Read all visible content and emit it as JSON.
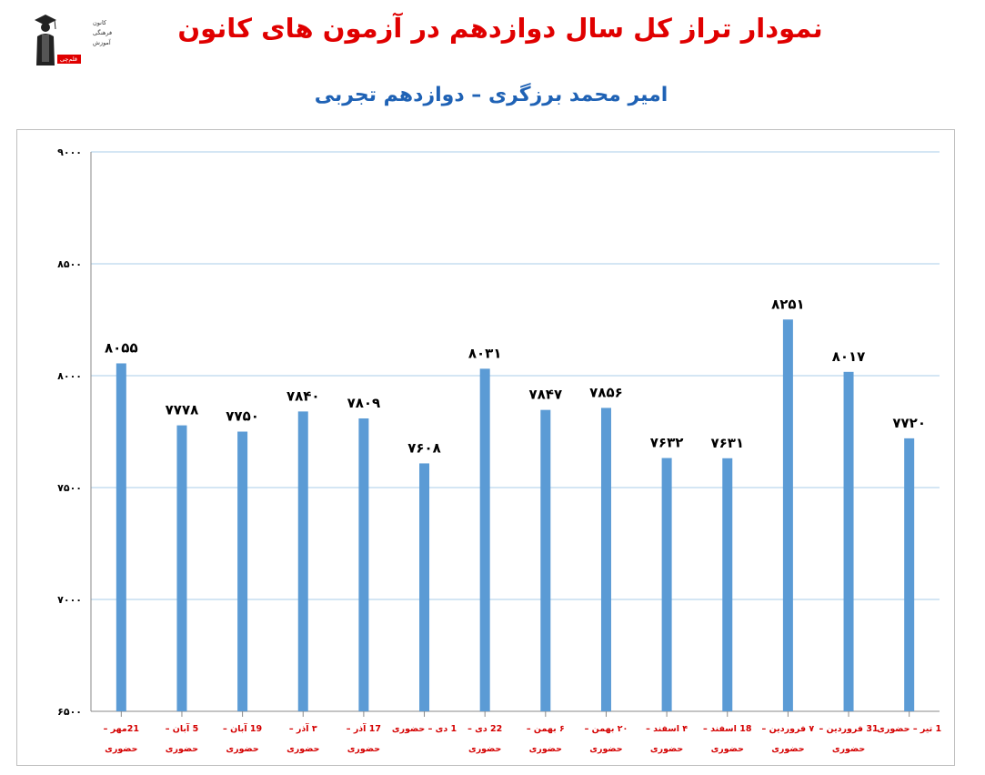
{
  "header": {
    "title": "نمودار تراز کل سال دوازدهم در آزمون های کانون",
    "subtitle": "امیر محمد برزگری – دوازدهم تجربی",
    "logo_lines": [
      "کانون",
      "فرهنگی",
      "آموزش",
      "قلم‌چی"
    ]
  },
  "colors": {
    "bar": "#5b9bd5",
    "title": "#e00000",
    "subtitle": "#1f62b5",
    "x_label": "#d40000",
    "grid": "#a9cde8"
  },
  "chart_data": {
    "type": "bar",
    "title": "نمودار تراز کل سال دوازدهم در آزمون های کانون",
    "subtitle": "امیر محمد برزگری – دوازدهم تجربی",
    "ylim": [
      6500,
      9000
    ],
    "yticks": [
      "۶۵۰۰",
      "۷۰۰۰",
      "۷۵۰۰",
      "۸۰۰۰",
      "۸۵۰۰",
      "۹۰۰۰"
    ],
    "ytick_values": [
      6500,
      7000,
      7500,
      8000,
      8500,
      9000
    ],
    "grid": true,
    "categories": [
      [
        "21مهر –",
        "حضوری"
      ],
      [
        "5 آبان –",
        "حضوری"
      ],
      [
        "19 آبان –",
        "حضوری"
      ],
      [
        "۳ آذر –",
        "حضوری"
      ],
      [
        "17 آذر –",
        "حضوری"
      ],
      [
        "1 دی – حضوری"
      ],
      [
        "22 دی –",
        "حضوری"
      ],
      [
        "۶ بهمن –",
        "حضوری"
      ],
      [
        "۲۰ بهمن –",
        "حضوری"
      ],
      [
        "۴ اسفند –",
        "حضوری"
      ],
      [
        "18 اسفند –",
        "حضوری"
      ],
      [
        "۷ فروردین –",
        "حضوری"
      ],
      [
        "31 فروردین –",
        "حضوری"
      ],
      [
        "1 تیر – حضوری"
      ]
    ],
    "values": [
      8055,
      7778,
      7750,
      7840,
      7809,
      7608,
      8031,
      7847,
      7856,
      7632,
      7631,
      8251,
      8017,
      7720
    ],
    "value_labels": [
      "۸۰۵۵",
      "۷۷۷۸",
      "۷۷۵۰",
      "۷۸۴۰",
      "۷۸۰۹",
      "۷۶۰۸",
      "۸۰۳۱",
      "۷۸۴۷",
      "۷۸۵۶",
      "۷۶۳۲",
      "۷۶۳۱",
      "۸۲۵۱",
      "۸۰۱۷",
      "۷۷۲۰"
    ]
  }
}
